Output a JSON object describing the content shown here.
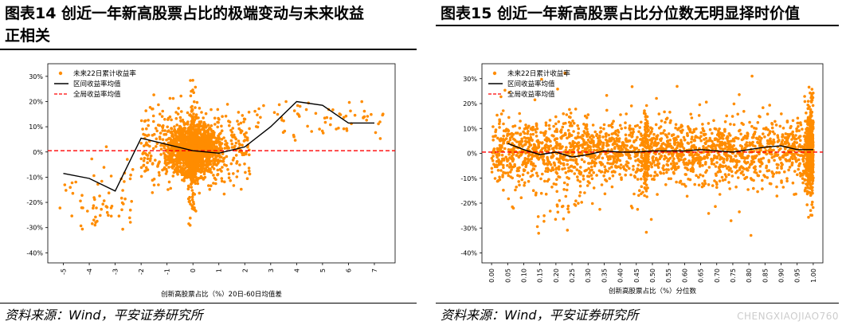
{
  "left_panel": {
    "title_line1": "图表14   创近一年新高股票占比的极端变动与未来收益",
    "title_line2": "正相关",
    "source": "资料来源：Wind，平安证券研究所"
  },
  "right_panel": {
    "title": "图表15   创近一年新高股票占比分位数无明显择时价值",
    "source": "资料来源：Wind，平安证券研究所",
    "watermark": "CHENGXIAOJIAO760"
  },
  "chart_data": [
    {
      "type": "scatter",
      "legend": [
        "未来22日累计收益率",
        "区间收益率均值",
        "全局收益率均值"
      ],
      "legend_position": "top-left",
      "xlabel": "创新高股票占比（%）20日-60日均值差",
      "xticks": [
        -5,
        -4,
        -3,
        -2,
        -1,
        0,
        1,
        2,
        3,
        4,
        5,
        6,
        7
      ],
      "xlim": [
        -5.6,
        7.8
      ],
      "yticks": [
        -0.4,
        -0.3,
        -0.2,
        -0.1,
        0,
        0.1,
        0.2,
        0.3
      ],
      "ytick_labels": [
        "-40%",
        "-30%",
        "-20%",
        "-10%",
        "0%",
        "10%",
        "20%",
        "30%"
      ],
      "ylim": [
        -0.44,
        0.35
      ],
      "series": [
        {
          "name": "区间收益率均值",
          "style": "line",
          "color": "#000000",
          "x": [
            -5,
            -4,
            -3,
            -2,
            -1,
            0,
            1,
            2,
            3,
            4,
            5,
            6,
            7
          ],
          "y": [
            -0.085,
            -0.105,
            -0.155,
            0.055,
            0.03,
            0.005,
            -0.005,
            0.02,
            0.1,
            0.2,
            0.185,
            0.115,
            0.115
          ]
        },
        {
          "name": "全局收益率均值",
          "style": "dashed",
          "color": "#ff0000",
          "y_const": 0.005
        }
      ],
      "scatter_color": "#ff8c00"
    },
    {
      "type": "scatter",
      "legend": [
        "未来22日累计收益率",
        "区间收益率均值",
        "全局收益率均值"
      ],
      "legend_position": "top-left",
      "xlabel": "创新高股票占比（%）分位数",
      "xticks": [
        0,
        0.05,
        0.1,
        0.15,
        0.2,
        0.25,
        0.3,
        0.35,
        0.4,
        0.45,
        0.5,
        0.55,
        0.6,
        0.65,
        0.7,
        0.75,
        0.8,
        0.85,
        0.9,
        0.95,
        1.0
      ],
      "xtick_labels": [
        "0.00",
        "0.05",
        "0.10",
        "0.15",
        "0.20",
        "0.25",
        "0.30",
        "0.35",
        "0.40",
        "0.45",
        "0.50",
        "0.55",
        "0.60",
        "0.65",
        "0.70",
        "0.75",
        "0.80",
        "0.85",
        "0.90",
        "0.95",
        "1.00"
      ],
      "xlim": [
        -0.03,
        1.03
      ],
      "yticks": [
        -0.4,
        -0.3,
        -0.2,
        -0.1,
        0,
        0.1,
        0.2,
        0.3
      ],
      "ytick_labels": [
        "-40%",
        "-30%",
        "-20%",
        "-10%",
        "0%",
        "10%",
        "20%",
        "30%"
      ],
      "ylim": [
        -0.44,
        0.36
      ],
      "series": [
        {
          "name": "区间收益率均值",
          "style": "line",
          "color": "#000000",
          "x": [
            0.05,
            0.1,
            0.15,
            0.2,
            0.25,
            0.3,
            0.35,
            0.4,
            0.45,
            0.5,
            0.55,
            0.6,
            0.65,
            0.7,
            0.75,
            0.8,
            0.85,
            0.9,
            0.95,
            1.0
          ],
          "y": [
            0.04,
            0.015,
            -0.005,
            0.005,
            -0.015,
            -0.005,
            0.01,
            0.005,
            0.005,
            0.01,
            0.01,
            0.01,
            0.015,
            0.01,
            0.005,
            0.015,
            0.025,
            0.03,
            0.015,
            0.015
          ]
        },
        {
          "name": "全局收益率均值",
          "style": "dashed",
          "color": "#ff0000",
          "y_const": 0.005
        }
      ],
      "scatter_color": "#ff8c00"
    }
  ]
}
